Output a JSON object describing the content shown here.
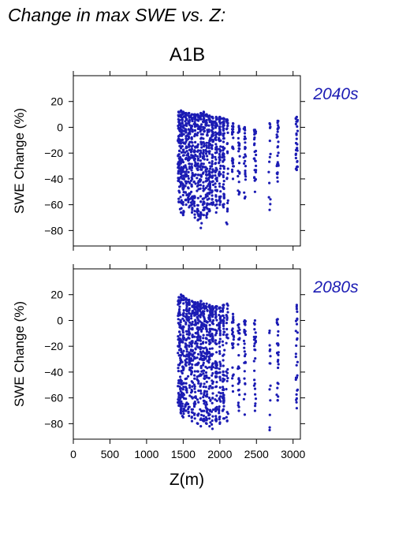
{
  "figure": {
    "heading": "Change in max SWE vs. Z:",
    "scenario": "A1B",
    "accent_color": "#1c1cb4"
  },
  "chart_data": [
    {
      "type": "scatter",
      "title": "2040s",
      "xlabel": "",
      "ylabel": "SWE Change (%)",
      "xlim": [
        0,
        3100
      ],
      "ylim": [
        -92,
        40
      ],
      "yticks": [
        20,
        0,
        -20,
        -40,
        -60,
        -80
      ],
      "xticks": [
        0,
        500,
        1000,
        1500,
        2000,
        2500,
        3000
      ],
      "show_xtick_labels": false,
      "grid": false,
      "color": "#1c1cb4",
      "elevation_columns": [
        {
          "x": 1440,
          "top": 12,
          "bottom": -58,
          "density": "high"
        },
        {
          "x": 1470,
          "top": 13,
          "bottom": -66,
          "density": "high"
        },
        {
          "x": 1500,
          "top": 12,
          "bottom": -68,
          "density": "high"
        },
        {
          "x": 1540,
          "top": 11,
          "bottom": -60,
          "density": "high"
        },
        {
          "x": 1580,
          "top": 11,
          "bottom": -62,
          "density": "high"
        },
        {
          "x": 1620,
          "top": 10,
          "bottom": -66,
          "density": "high"
        },
        {
          "x": 1660,
          "top": 10,
          "bottom": -70,
          "density": "high"
        },
        {
          "x": 1700,
          "top": 10,
          "bottom": -72,
          "density": "high"
        },
        {
          "x": 1740,
          "top": 11,
          "bottom": -78,
          "density": "high"
        },
        {
          "x": 1780,
          "top": 12,
          "bottom": -68,
          "density": "high"
        },
        {
          "x": 1820,
          "top": 10,
          "bottom": -70,
          "density": "high"
        },
        {
          "x": 1860,
          "top": 9,
          "bottom": -65,
          "density": "high"
        },
        {
          "x": 1900,
          "top": 8,
          "bottom": -60,
          "density": "high"
        },
        {
          "x": 1950,
          "top": 8,
          "bottom": -66,
          "density": "high"
        },
        {
          "x": 2000,
          "top": 8,
          "bottom": -60,
          "density": "high"
        },
        {
          "x": 2050,
          "top": 7,
          "bottom": -62,
          "density": "high"
        },
        {
          "x": 2100,
          "top": 6,
          "bottom": -75,
          "density": "medium"
        },
        {
          "x": 2180,
          "top": 3,
          "bottom": -40,
          "density": "medium"
        },
        {
          "x": 2260,
          "top": 1,
          "bottom": -52,
          "density": "medium"
        },
        {
          "x": 2340,
          "top": 0,
          "bottom": -55,
          "density": "medium"
        },
        {
          "x": 2480,
          "top": -2,
          "bottom": -50,
          "density": "medium"
        },
        {
          "x": 2680,
          "top": 3,
          "bottom": -64,
          "density": "low"
        },
        {
          "x": 2790,
          "top": 5,
          "bottom": -42,
          "density": "medium"
        },
        {
          "x": 3050,
          "top": 8,
          "bottom": -33,
          "density": "medium"
        }
      ]
    },
    {
      "type": "scatter",
      "title": "2080s",
      "xlabel": "Z(m)",
      "ylabel": "SWE Change (%)",
      "xlim": [
        0,
        3100
      ],
      "ylim": [
        -92,
        40
      ],
      "yticks": [
        20,
        0,
        -20,
        -40,
        -60,
        -80
      ],
      "xticks": [
        0,
        500,
        1000,
        1500,
        2000,
        2500,
        3000
      ],
      "show_xtick_labels": true,
      "grid": false,
      "color": "#1c1cb4",
      "elevation_columns": [
        {
          "x": 1440,
          "top": 18,
          "bottom": -66,
          "density": "high"
        },
        {
          "x": 1470,
          "top": 20,
          "bottom": -72,
          "density": "high"
        },
        {
          "x": 1500,
          "top": 19,
          "bottom": -75,
          "density": "high"
        },
        {
          "x": 1540,
          "top": 17,
          "bottom": -70,
          "density": "high"
        },
        {
          "x": 1580,
          "top": 16,
          "bottom": -74,
          "density": "high"
        },
        {
          "x": 1620,
          "top": 15,
          "bottom": -78,
          "density": "high"
        },
        {
          "x": 1660,
          "top": 14,
          "bottom": -76,
          "density": "high"
        },
        {
          "x": 1700,
          "top": 14,
          "bottom": -80,
          "density": "high"
        },
        {
          "x": 1740,
          "top": 15,
          "bottom": -82,
          "density": "high"
        },
        {
          "x": 1780,
          "top": 13,
          "bottom": -78,
          "density": "high"
        },
        {
          "x": 1820,
          "top": 13,
          "bottom": -80,
          "density": "high"
        },
        {
          "x": 1860,
          "top": 12,
          "bottom": -82,
          "density": "high"
        },
        {
          "x": 1900,
          "top": 11,
          "bottom": -84,
          "density": "high"
        },
        {
          "x": 1950,
          "top": 11,
          "bottom": -78,
          "density": "high"
        },
        {
          "x": 2000,
          "top": 10,
          "bottom": -80,
          "density": "high"
        },
        {
          "x": 2050,
          "top": 12,
          "bottom": -76,
          "density": "high"
        },
        {
          "x": 2100,
          "top": 13,
          "bottom": -78,
          "density": "medium"
        },
        {
          "x": 2180,
          "top": 5,
          "bottom": -55,
          "density": "medium"
        },
        {
          "x": 2260,
          "top": -3,
          "bottom": -70,
          "density": "medium"
        },
        {
          "x": 2340,
          "top": 0,
          "bottom": -73,
          "density": "medium"
        },
        {
          "x": 2480,
          "top": 0,
          "bottom": -70,
          "density": "medium"
        },
        {
          "x": 2680,
          "top": -8,
          "bottom": -85,
          "density": "low"
        },
        {
          "x": 2790,
          "top": 1,
          "bottom": -62,
          "density": "medium"
        },
        {
          "x": 3050,
          "top": 12,
          "bottom": -68,
          "density": "medium"
        }
      ]
    }
  ]
}
